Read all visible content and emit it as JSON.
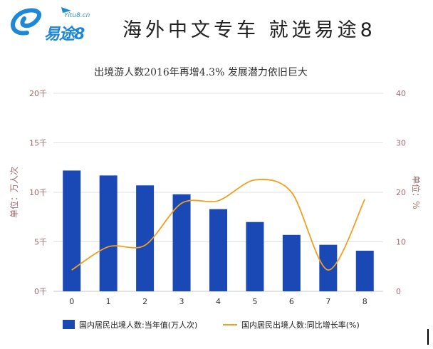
{
  "brand": {
    "logo_text": "易途8",
    "logo_subtext": "Yitu8.cn",
    "headline": "海外中文专车 就选易途8",
    "colors": {
      "logo": "#1d87d8",
      "headline": "#222222"
    }
  },
  "chart_data": {
    "type": "bar",
    "title": "出境游人数2016年再增4.3% 发展潜力依旧巨大",
    "categories": [
      "0",
      "1",
      "2",
      "3",
      "4",
      "5",
      "6",
      "7",
      "8"
    ],
    "y_left": {
      "label": "单位：万人次",
      "ylim": [
        0,
        20
      ],
      "ticks": [
        "0千",
        "5千",
        "10千",
        "15千",
        "20千"
      ]
    },
    "y_right": {
      "label": "单位：%",
      "ylim": [
        0,
        40
      ],
      "ticks": [
        "0",
        "10",
        "20",
        "30",
        "40"
      ]
    },
    "grid": true,
    "legend_position": "bottom",
    "series": [
      {
        "name": "国内居民出境人数:当年值(万人次)",
        "type": "bar",
        "axis": "left",
        "color": "#1a49b5",
        "values": [
          12.2,
          11.7,
          10.7,
          9.8,
          8.3,
          7.0,
          5.7,
          4.7,
          4.1
        ]
      },
      {
        "name": "国内居民出境人数:同比增长率(%)",
        "type": "line",
        "axis": "right",
        "color": "#f0a020",
        "values": [
          4.3,
          9.0,
          9.3,
          17.8,
          18.3,
          22.5,
          20.0,
          4.3,
          18.6
        ]
      }
    ]
  }
}
